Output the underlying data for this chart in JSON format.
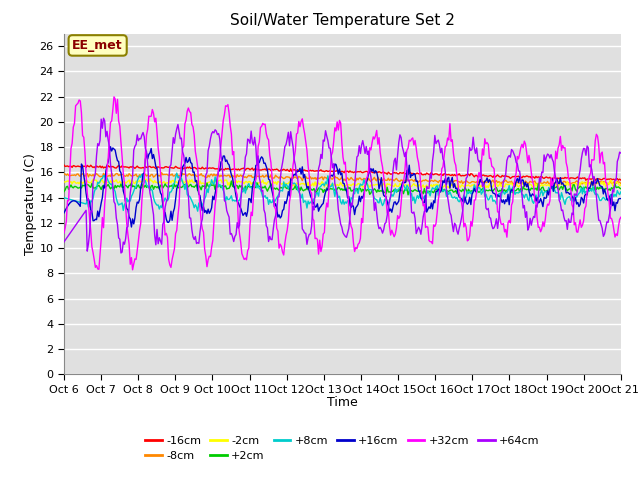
{
  "title": "Soil/Water Temperature Set 2",
  "xlabel": "Time",
  "ylabel": "Temperature (C)",
  "ylim": [
    0,
    27
  ],
  "yticks": [
    0,
    2,
    4,
    6,
    8,
    10,
    12,
    14,
    16,
    18,
    20,
    22,
    24,
    26
  ],
  "x_labels": [
    "Oct 6",
    "Oct 7",
    "Oct 8",
    "Oct 9",
    "Oct 10",
    "Oct 11",
    "Oct 12",
    "Oct 13",
    "Oct 14",
    "Oct 15",
    "Oct 16",
    "Oct 17",
    "Oct 18",
    "Oct 19",
    "Oct 20",
    "Oct 21"
  ],
  "annotation_text": "EE_met",
  "annotation_color": "#8B0000",
  "annotation_bg": "#FFFFC0",
  "annotation_border": "#8B8000",
  "series": [
    {
      "label": "-16cm",
      "color": "#FF0000"
    },
    {
      "label": "-8cm",
      "color": "#FF8800"
    },
    {
      "label": "-2cm",
      "color": "#FFFF00"
    },
    {
      "label": "+2cm",
      "color": "#00CC00"
    },
    {
      "label": "+8cm",
      "color": "#00CCCC"
    },
    {
      "label": "+16cm",
      "color": "#0000CC"
    },
    {
      "label": "+32cm",
      "color": "#FF00FF"
    },
    {
      "label": "+64cm",
      "color": "#AA00FF"
    }
  ],
  "bg_color": "#E0E0E0",
  "n_points": 480,
  "legend_ncol": 6
}
